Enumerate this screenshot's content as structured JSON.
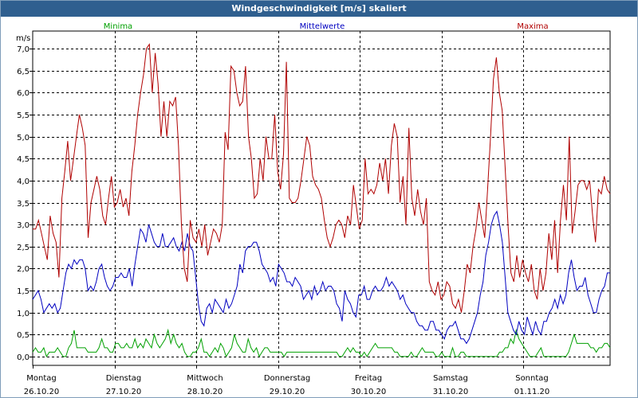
{
  "window": {
    "title": "Windgeschwindigkeit [m/s] skaliert"
  },
  "chart_data": {
    "type": "line",
    "title": "Windgeschwindigkeit [m/s] skaliert",
    "ylabel": "m/s",
    "xlabel": "",
    "ylim": [
      -0.2,
      7.4
    ],
    "yticks": [
      "0,0",
      "0,5",
      "1,0",
      "1,5",
      "2,0",
      "2,5",
      "3,0",
      "3,5",
      "4,0",
      "4,5",
      "5,0",
      "5,5",
      "6,0",
      "6,5",
      "7,0"
    ],
    "grid": true,
    "legend_position": "top",
    "x_ticks": [
      {
        "day": "Montag",
        "date": "26.10.20"
      },
      {
        "day": "Dienstag",
        "date": "27.10.20"
      },
      {
        "day": "Mittwoch",
        "date": "28.10.20"
      },
      {
        "day": "Donnerstag",
        "date": "29.10.20"
      },
      {
        "day": "Freitag",
        "date": "30.10.20"
      },
      {
        "day": "Samstag",
        "date": "31.10.20"
      },
      {
        "day": "Sonntag",
        "date": "01.11.20"
      }
    ],
    "series": [
      {
        "name": "Minima",
        "color": "#00a000",
        "values": [
          0.1,
          0.2,
          0.1,
          0.1,
          0.2,
          0.0,
          0.1,
          0.1,
          0.1,
          0.2,
          0.1,
          0.0,
          0.0,
          0.2,
          0.3,
          0.6,
          0.2,
          0.2,
          0.2,
          0.2,
          0.1,
          0.1,
          0.1,
          0.1,
          0.2,
          0.4,
          0.2,
          0.2,
          0.1,
          0.1,
          0.3,
          0.3,
          0.2,
          0.2,
          0.3,
          0.2,
          0.2,
          0.4,
          0.2,
          0.3,
          0.2,
          0.4,
          0.3,
          0.2,
          0.5,
          0.3,
          0.2,
          0.3,
          0.4,
          0.6,
          0.3,
          0.5,
          0.3,
          0.2,
          0.3,
          0.1,
          0.0,
          0.0,
          0.1,
          0.1,
          0.2,
          0.4,
          0.1,
          0.1,
          0.0,
          0.1,
          0.2,
          0.1,
          0.3,
          0.2,
          0.0,
          0.1,
          0.2,
          0.5,
          0.3,
          0.2,
          0.1,
          0.1,
          0.4,
          0.2,
          0.1,
          0.2,
          0.0,
          0.1,
          0.2,
          0.2,
          0.1,
          0.1,
          0.1,
          0.1,
          0.1,
          0.0,
          0.1,
          0.1,
          0.1,
          0.1,
          0.1,
          0.1,
          0.1,
          0.1,
          0.1,
          0.1,
          0.1,
          0.1,
          0.1,
          0.1,
          0.1,
          0.1,
          0.1,
          0.1,
          0.1,
          0.0,
          0.0,
          0.1,
          0.2,
          0.1,
          0.2,
          0.1,
          0.1,
          0.0,
          0.1,
          0.0,
          0.1,
          0.2,
          0.3,
          0.2,
          0.2,
          0.2,
          0.2,
          0.2,
          0.2,
          0.1,
          0.1,
          0.0,
          0.0,
          0.0,
          0.0,
          0.1,
          0.0,
          0.0,
          0.1,
          0.2,
          0.1,
          0.1,
          0.1,
          0.1,
          0.0,
          0.0,
          0.1,
          0.0,
          0.0,
          0.0,
          0.2,
          0.0,
          0.0,
          0.1,
          0.1,
          0.0,
          0.0,
          0.0,
          0.0,
          0.0,
          0.0,
          0.0,
          0.0,
          0.0,
          0.0,
          0.0,
          0.0,
          0.1,
          0.1,
          0.2,
          0.2,
          0.4,
          0.3,
          0.6,
          0.4,
          0.3,
          0.2,
          0.1,
          0.0,
          0.0,
          0.0,
          0.1,
          0.2,
          0.0,
          0.0,
          0.0,
          0.0,
          0.0,
          0.0,
          0.0,
          0.0,
          0.0,
          0.1,
          0.3,
          0.5,
          0.3,
          0.3,
          0.3,
          0.3,
          0.3,
          0.2,
          0.2,
          0.1,
          0.2,
          0.2,
          0.3,
          0.3,
          0.2
        ]
      },
      {
        "name": "Mittelwerte",
        "color": "#0000c0",
        "values": [
          1.3,
          1.4,
          1.5,
          1.3,
          1.0,
          1.1,
          1.2,
          1.1,
          1.2,
          1.0,
          1.1,
          1.5,
          1.9,
          2.1,
          2.0,
          2.2,
          2.1,
          2.2,
          2.2,
          2.0,
          1.5,
          1.6,
          1.5,
          1.7,
          2.0,
          2.1,
          1.8,
          1.6,
          1.5,
          1.6,
          1.8,
          1.8,
          1.9,
          1.8,
          1.8,
          2.0,
          1.6,
          2.1,
          2.5,
          2.9,
          2.8,
          2.6,
          3.0,
          2.8,
          2.6,
          2.5,
          2.5,
          2.8,
          2.5,
          2.5,
          2.6,
          2.7,
          2.5,
          2.4,
          2.6,
          2.4,
          2.8,
          2.5,
          2.4,
          1.8,
          1.2,
          0.8,
          0.7,
          1.1,
          1.2,
          1.0,
          1.3,
          1.2,
          1.1,
          1.0,
          1.3,
          1.1,
          1.2,
          1.4,
          1.6,
          2.1,
          1.9,
          2.4,
          2.5,
          2.5,
          2.6,
          2.6,
          2.4,
          2.1,
          2.0,
          1.9,
          1.7,
          1.8,
          1.6,
          2.1,
          2.0,
          1.9,
          1.7,
          1.7,
          1.6,
          1.8,
          1.7,
          1.6,
          1.3,
          1.4,
          1.5,
          1.3,
          1.6,
          1.4,
          1.5,
          1.7,
          1.5,
          1.6,
          1.6,
          1.5,
          1.2,
          1.1,
          0.8,
          1.5,
          1.3,
          1.2,
          1.0,
          0.9,
          1.4,
          1.4,
          1.6,
          1.3,
          1.3,
          1.5,
          1.6,
          1.5,
          1.5,
          1.6,
          1.8,
          1.6,
          1.7,
          1.6,
          1.5,
          1.3,
          1.4,
          1.2,
          1.1,
          1.0,
          1.0,
          0.8,
          0.7,
          0.7,
          0.6,
          0.6,
          0.8,
          0.8,
          0.6,
          0.6,
          0.5,
          0.4,
          0.6,
          0.7,
          0.7,
          0.8,
          0.6,
          0.4,
          0.4,
          0.3,
          0.4,
          0.6,
          0.8,
          1.0,
          1.4,
          1.7,
          2.3,
          2.6,
          3.0,
          3.2,
          3.3,
          3.0,
          2.6,
          1.8,
          1.0,
          0.8,
          0.6,
          0.5,
          0.8,
          0.6,
          0.5,
          0.9,
          0.7,
          0.5,
          0.8,
          0.6,
          0.5,
          0.8,
          0.8,
          1.0,
          1.1,
          1.3,
          1.1,
          1.4,
          1.2,
          1.4,
          1.9,
          2.2,
          1.8,
          1.5,
          1.6,
          1.6,
          1.8,
          1.4,
          1.2,
          1.0,
          1.0,
          1.3,
          1.5,
          1.6,
          1.9,
          1.9
        ]
      },
      {
        "name": "Maxima",
        "color": "#b00000",
        "values": [
          2.9,
          2.9,
          3.1,
          2.8,
          2.5,
          2.2,
          3.2,
          2.8,
          2.6,
          1.8,
          3.6,
          4.2,
          4.9,
          4.0,
          4.5,
          5.0,
          5.5,
          5.2,
          4.8,
          2.7,
          3.5,
          3.8,
          4.1,
          3.8,
          3.2,
          3.0,
          3.6,
          4.1,
          3.4,
          3.5,
          3.8,
          3.4,
          3.6,
          3.2,
          4.2,
          4.8,
          5.5,
          6.0,
          6.4,
          7.0,
          7.1,
          6.0,
          6.9,
          6.2,
          5.0,
          5.8,
          5.0,
          5.8,
          5.7,
          5.9,
          4.8,
          3.0,
          2.0,
          1.7,
          3.1,
          2.7,
          2.6,
          2.9,
          2.5,
          3.0,
          2.3,
          2.6,
          2.9,
          2.8,
          2.6,
          3.0,
          5.1,
          4.7,
          6.6,
          6.5,
          6.0,
          5.7,
          5.8,
          6.6,
          5.0,
          4.5,
          3.6,
          3.7,
          4.5,
          4.0,
          5.0,
          4.5,
          4.5,
          5.5,
          4.2,
          3.8,
          4.6,
          6.7,
          3.6,
          3.5,
          3.5,
          3.6,
          4.0,
          4.5,
          5.0,
          4.8,
          4.1,
          3.9,
          3.8,
          3.6,
          3.1,
          2.7,
          2.5,
          2.7,
          3.0,
          3.1,
          3.0,
          2.7,
          3.2,
          3.0,
          3.9,
          3.4,
          2.9,
          3.1,
          4.5,
          3.7,
          3.8,
          3.7,
          3.9,
          4.4,
          4.0,
          4.5,
          3.7,
          4.8,
          5.3,
          5.0,
          3.5,
          4.1,
          3.0,
          5.2,
          3.6,
          3.2,
          3.8,
          3.3,
          3.0,
          3.6,
          1.7,
          1.5,
          1.4,
          1.7,
          1.3,
          1.4,
          1.7,
          1.6,
          1.2,
          1.1,
          1.3,
          1.0,
          1.5,
          2.1,
          1.9,
          2.5,
          2.9,
          3.5,
          3.1,
          2.7,
          3.8,
          5.0,
          6.3,
          6.8,
          6.0,
          5.6,
          4.3,
          3.0,
          1.9,
          1.7,
          2.3,
          1.8,
          2.2,
          1.9,
          1.7,
          2.1,
          1.5,
          1.3,
          2.0,
          1.5,
          1.9,
          2.8,
          2.2,
          3.1,
          1.9,
          3.1,
          3.9,
          3.1,
          5.0,
          2.8,
          3.3,
          3.9,
          4.0,
          4.0,
          3.8,
          4.0,
          3.2,
          2.6,
          3.8,
          3.7,
          4.1,
          3.8,
          3.7
        ]
      }
    ]
  }
}
